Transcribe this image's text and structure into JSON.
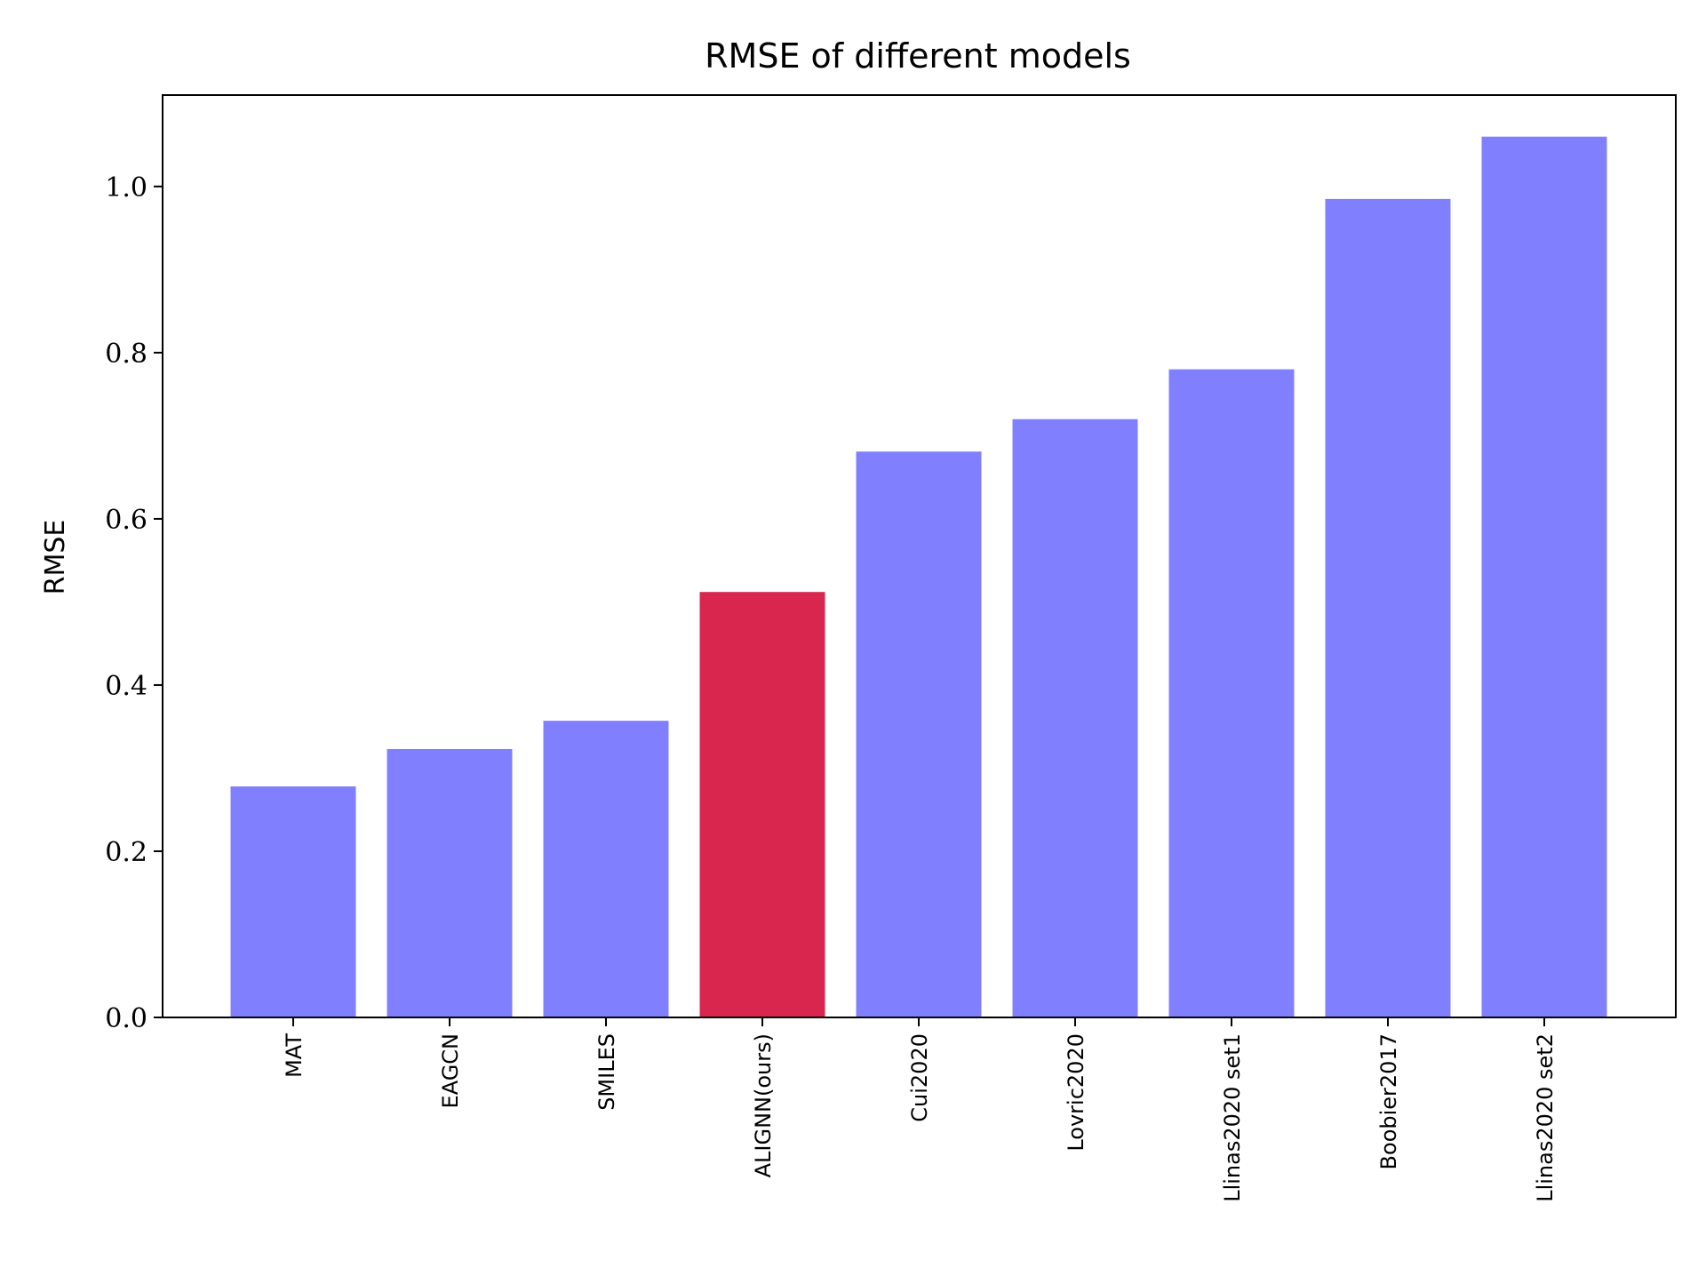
{
  "chart_data": {
    "type": "bar",
    "title": "RMSE of different models",
    "xlabel": "",
    "ylabel": "RMSE",
    "categories": [
      "MAT",
      "EAGCN",
      "SMILES",
      "ALIGNN(ours)",
      "Cui2020",
      "Lovric2020",
      "Llinas2020 set1",
      "Boobier2017",
      "Llinas2020 set2"
    ],
    "values": [
      0.278,
      0.323,
      0.357,
      0.512,
      0.681,
      0.72,
      0.78,
      0.985,
      1.06
    ],
    "ylim": [
      0,
      1.11
    ],
    "yticks": [
      "0.0",
      "0.2",
      "0.4",
      "0.6",
      "0.8",
      "1.0"
    ],
    "bar_colors": [
      "#8080ff",
      "#8080ff",
      "#8080ff",
      "#d9264f",
      "#8080ff",
      "#8080ff",
      "#8080ff",
      "#8080ff",
      "#8080ff"
    ],
    "grid": false,
    "legend": "none"
  }
}
